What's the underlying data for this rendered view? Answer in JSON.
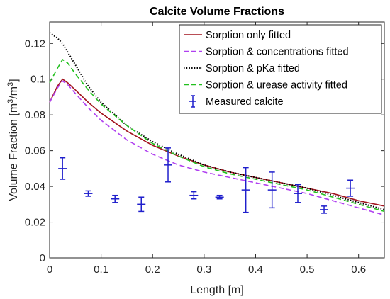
{
  "chart_data": {
    "type": "line",
    "title": "Calcite Volume Fractions",
    "xlabel": "Length [m]",
    "ylabel": "Volume Fraction [m",
    "ylabel_sup1": "3",
    "ylabel_mid": "/m",
    "ylabel_sup2": "3",
    "ylabel_end": "]",
    "xlim": [
      0,
      0.65
    ],
    "ylim": [
      0,
      0.132
    ],
    "xticks": [
      0,
      0.1,
      0.2,
      0.3,
      0.4,
      0.5,
      0.6
    ],
    "xtick_labels": [
      "0",
      "0.1",
      "0.2",
      "0.3",
      "0.4",
      "0.5",
      "0.6"
    ],
    "yticks": [
      0,
      0.02,
      0.04,
      0.06,
      0.08,
      0.1,
      0.12
    ],
    "ytick_labels": [
      "0",
      "0.02",
      "0.04",
      "0.06",
      "0.08",
      "0.1",
      "0.12"
    ],
    "grid": false,
    "legend_position": "top-right",
    "series": [
      {
        "name": "Sorption only fitted",
        "style": "solid",
        "color": "#a2141e",
        "x": [
          0,
          0.015,
          0.025,
          0.035,
          0.05,
          0.075,
          0.1,
          0.15,
          0.2,
          0.25,
          0.3,
          0.35,
          0.4,
          0.45,
          0.5,
          0.55,
          0.6,
          0.65
        ],
        "y": [
          0.087,
          0.096,
          0.1,
          0.098,
          0.094,
          0.087,
          0.081,
          0.071,
          0.063,
          0.057,
          0.052,
          0.048,
          0.045,
          0.042,
          0.039,
          0.036,
          0.032,
          0.029
        ]
      },
      {
        "name": "Sorption & concentrations fitted",
        "style": "dashed",
        "color": "#b040f0",
        "x": [
          0,
          0.015,
          0.025,
          0.035,
          0.05,
          0.075,
          0.1,
          0.15,
          0.2,
          0.25,
          0.3,
          0.35,
          0.4,
          0.45,
          0.5,
          0.55,
          0.6,
          0.65
        ],
        "y": [
          0.087,
          0.095,
          0.099,
          0.097,
          0.092,
          0.084,
          0.077,
          0.066,
          0.058,
          0.052,
          0.048,
          0.045,
          0.042,
          0.039,
          0.036,
          0.032,
          0.028,
          0.024
        ]
      },
      {
        "name": "Sorption & pKa fitted",
        "style": "dotted",
        "color": "#000000",
        "x": [
          0,
          0.015,
          0.025,
          0.05,
          0.075,
          0.1,
          0.15,
          0.2,
          0.25,
          0.3,
          0.35,
          0.4,
          0.45,
          0.5,
          0.55,
          0.6,
          0.65
        ],
        "y": [
          0.126,
          0.123,
          0.12,
          0.108,
          0.096,
          0.087,
          0.074,
          0.065,
          0.058,
          0.052,
          0.048,
          0.045,
          0.042,
          0.039,
          0.035,
          0.031,
          0.027
        ]
      },
      {
        "name": "Sorption & urease activity fitted",
        "style": "dashed",
        "color": "#22c01e",
        "x": [
          0,
          0.015,
          0.025,
          0.035,
          0.05,
          0.075,
          0.1,
          0.15,
          0.2,
          0.25,
          0.3,
          0.35,
          0.4,
          0.45,
          0.5,
          0.55,
          0.6,
          0.65
        ],
        "y": [
          0.098,
          0.106,
          0.111,
          0.109,
          0.103,
          0.094,
          0.086,
          0.074,
          0.064,
          0.057,
          0.051,
          0.047,
          0.044,
          0.041,
          0.038,
          0.034,
          0.03,
          0.026
        ]
      }
    ],
    "measured": {
      "name": "Measured calcite",
      "color": "#1f1fcc",
      "points": [
        {
          "x": 0.025,
          "y": 0.05,
          "err": 0.006
        },
        {
          "x": 0.075,
          "y": 0.036,
          "err": 0.0015
        },
        {
          "x": 0.127,
          "y": 0.033,
          "err": 0.002
        },
        {
          "x": 0.178,
          "y": 0.03,
          "err": 0.004
        },
        {
          "x": 0.23,
          "y": 0.052,
          "err": 0.0095
        },
        {
          "x": 0.28,
          "y": 0.035,
          "err": 0.002
        },
        {
          "x": 0.33,
          "y": 0.034,
          "err": 0.001
        },
        {
          "x": 0.381,
          "y": 0.038,
          "err": 0.0125
        },
        {
          "x": 0.432,
          "y": 0.038,
          "err": 0.01
        },
        {
          "x": 0.482,
          "y": 0.036,
          "err": 0.005
        },
        {
          "x": 0.533,
          "y": 0.027,
          "err": 0.002
        },
        {
          "x": 0.584,
          "y": 0.039,
          "err": 0.0045
        }
      ]
    }
  }
}
